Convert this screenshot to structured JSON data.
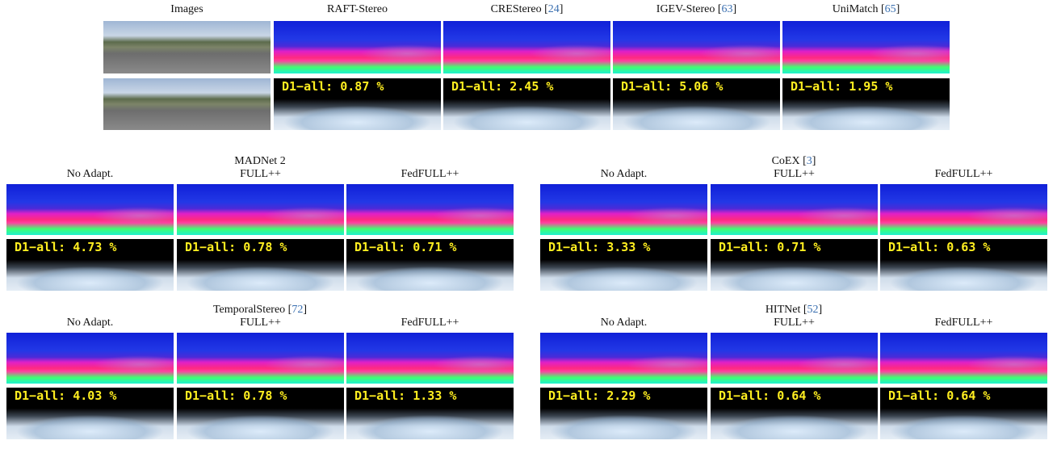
{
  "top": {
    "headers": [
      [
        "Images"
      ],
      [
        "RAFT-Stereo"
      ],
      [
        "CREStereo [",
        "24",
        "]"
      ],
      [
        "IGEV-Stereo [",
        "63",
        "]"
      ],
      [
        "UniMatch [",
        "65",
        "]"
      ]
    ],
    "errors": [
      "D1−all: 0.87 %",
      "D1−all: 2.45 %",
      "D1−all: 5.06 %",
      "D1−all: 1.95 %"
    ]
  },
  "groups": [
    {
      "title": [
        "MADNet 2"
      ],
      "columns": [
        "No Adapt.",
        "FULL++",
        "FedFULL++"
      ],
      "errors": [
        "D1−all: 4.73 %",
        "D1−all: 0.78 %",
        "D1−all: 0.71 %"
      ]
    },
    {
      "title": [
        "CoEX [",
        "3",
        "]"
      ],
      "columns": [
        "No Adapt.",
        "FULL++",
        "FedFULL++"
      ],
      "errors": [
        "D1−all: 3.33 %",
        "D1−all: 0.71 %",
        "D1−all: 0.63 %"
      ]
    },
    {
      "title": [
        "TemporalStereo [",
        "72",
        "]"
      ],
      "columns": [
        "No Adapt.",
        "FULL++",
        "FedFULL++"
      ],
      "errors": [
        "D1−all: 4.03 %",
        "D1−all: 0.78 %",
        "D1−all: 1.33 %"
      ]
    },
    {
      "title": [
        "HITNet [",
        "52",
        "]"
      ],
      "columns": [
        "No Adapt.",
        "FULL++",
        "FedFULL++"
      ],
      "errors": [
        "D1−all: 2.29 %",
        "D1−all: 0.64 %",
        "D1−all: 0.64 %"
      ]
    }
  ]
}
